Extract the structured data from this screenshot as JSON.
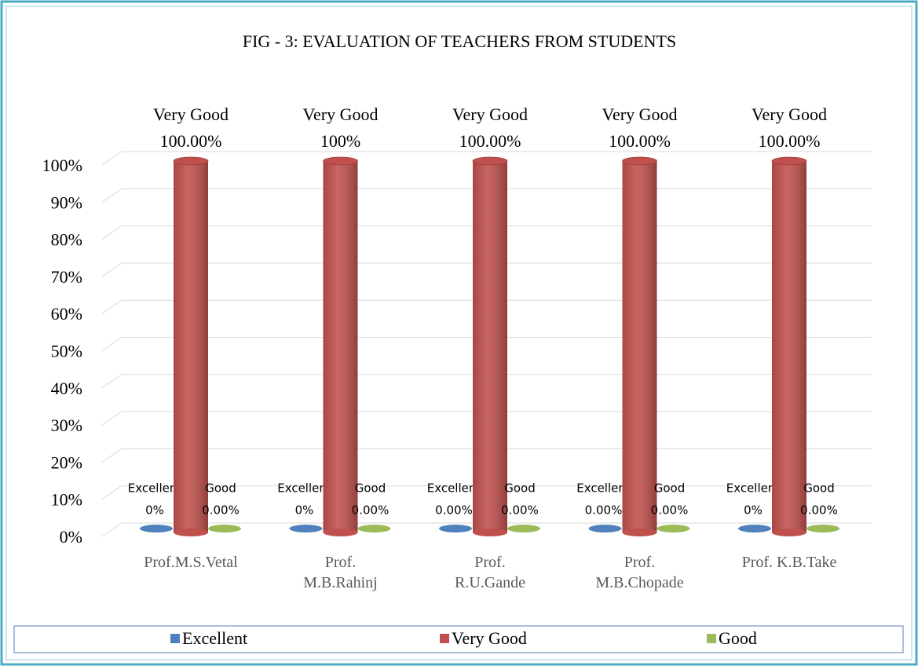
{
  "chart_data": {
    "type": "bar",
    "title": "FIG - 3:  EVALUATION OF TEACHERS FROM STUDENTS",
    "categories": [
      "Prof.M.S.Vetal",
      "Prof. M.B.Rahinj",
      "Prof. R.U.Gande",
      "Prof. M.B.Chopade",
      "Prof. K.B.Take"
    ],
    "series": [
      {
        "name": "Excellent",
        "color": "#4f81bd",
        "values": [
          0,
          0,
          0,
          0,
          0
        ],
        "value_labels": [
          "0%",
          "0%",
          "0.00%",
          "0.00%",
          "0%"
        ]
      },
      {
        "name": "Very Good",
        "color": "#c0504d",
        "values": [
          100,
          100,
          100,
          100,
          100
        ],
        "value_labels": [
          "100.00%",
          "100%",
          "100.00%",
          "100.00%",
          "100.00%"
        ]
      },
      {
        "name": "Good",
        "color": "#9bbb59",
        "values": [
          0,
          0,
          0,
          0,
          0
        ],
        "value_labels": [
          "0.00%",
          "0.00%",
          "0.00%",
          "0.00%",
          "0.00%"
        ]
      }
    ],
    "ylim": [
      0,
      100
    ],
    "yticks": [
      {
        "value": 0,
        "label": "0%"
      },
      {
        "value": 10,
        "label": "10%"
      },
      {
        "value": 20,
        "label": "20%"
      },
      {
        "value": 30,
        "label": "30%"
      },
      {
        "value": 40,
        "label": "40%"
      },
      {
        "value": 50,
        "label": "50%"
      },
      {
        "value": 60,
        "label": "60%"
      },
      {
        "value": 70,
        "label": "70%"
      },
      {
        "value": 80,
        "label": "80%"
      },
      {
        "value": 90,
        "label": "90%"
      },
      {
        "value": 100,
        "label": "100%"
      }
    ],
    "grid": true,
    "legend": "bottom"
  }
}
